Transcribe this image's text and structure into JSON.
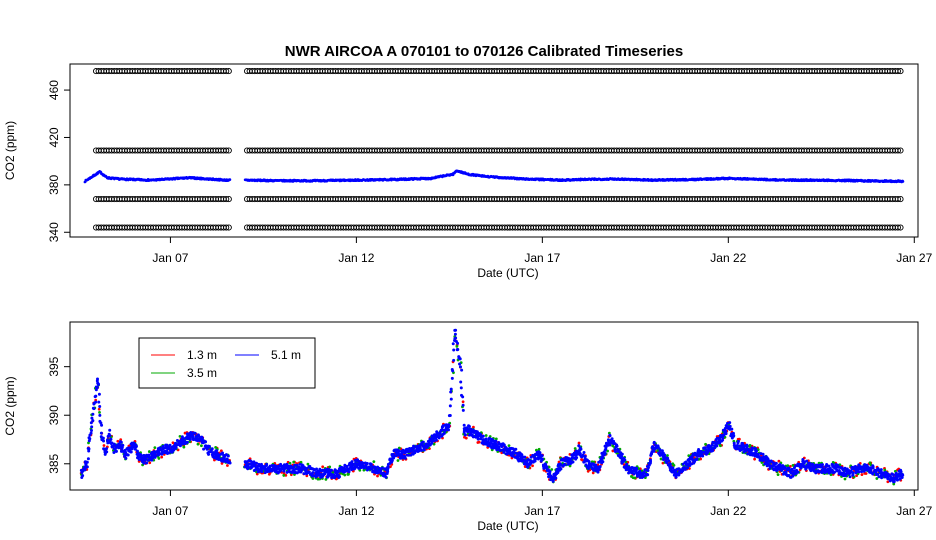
{
  "chart_data": [
    {
      "type": "scatter",
      "title": "NWR   AIRCOA  A    070101  to  070126   Calibrated Timeseries",
      "xlabel": "Date (UTC)",
      "ylabel": "CO2 (ppm)",
      "xlim": [
        4.3,
        27.1
      ],
      "ylim": [
        336,
        482
      ],
      "x_ticks": [
        7,
        12,
        17,
        22,
        27
      ],
      "x_tick_labels": [
        "Jan 07",
        "Jan 12",
        "Jan 17",
        "Jan 22",
        "Jan 27"
      ],
      "y_ticks": [
        340,
        380,
        420,
        460
      ],
      "y_tick_labels": [
        "340",
        "380",
        "420",
        "460"
      ],
      "gap": [
        8.6,
        9.0
      ],
      "calibration_levels": [
        {
          "value": 476,
          "start": 5.0,
          "end": 26.7
        },
        {
          "value": 409,
          "start": 5.0,
          "end": 26.7
        },
        {
          "value": 368,
          "start": 5.0,
          "end": 26.7
        },
        {
          "value": 344,
          "start": 5.0,
          "end": 26.7
        }
      ],
      "series": [
        {
          "color": "#0000ff",
          "x": [
            4.7,
            4.9,
            5.1,
            5.3,
            5.6,
            6.0,
            6.5,
            7.0,
            7.5,
            8.0,
            8.5,
            9.0,
            10.0,
            11.0,
            12.0,
            13.0,
            14.0,
            14.6,
            14.7,
            15.0,
            15.5,
            16.0,
            16.5,
            17.0,
            17.5,
            18.0,
            19.0,
            20.0,
            21.0,
            22.0,
            22.5,
            23.5,
            24.5,
            25.5,
            26.7
          ],
          "y": [
            383,
            387,
            391,
            386,
            385,
            384.5,
            384,
            385,
            386,
            385,
            384,
            384,
            383.5,
            383.5,
            384,
            384.5,
            385.5,
            389,
            392,
            389,
            387,
            386,
            385,
            384.5,
            384,
            384.5,
            385,
            384,
            384.5,
            385.5,
            385,
            384,
            384,
            383.5,
            383
          ]
        }
      ]
    },
    {
      "type": "line",
      "xlabel": "Date (UTC)",
      "ylabel": "CO2 (ppm)",
      "xlim": [
        4.3,
        27.1
      ],
      "ylim": [
        382.3,
        399.6
      ],
      "x_ticks": [
        7,
        12,
        17,
        22,
        27
      ],
      "x_tick_labels": [
        "Jan 07",
        "Jan 12",
        "Jan 17",
        "Jan 22",
        "Jan 27"
      ],
      "y_ticks": [
        385,
        390,
        395
      ],
      "y_tick_labels": [
        "385",
        "390",
        "395"
      ],
      "gap": [
        8.6,
        9.0
      ],
      "legend": {
        "placement": "top-left",
        "entries": [
          {
            "label": "1.3 m",
            "color": "#ff0000"
          },
          {
            "label": "5.1 m",
            "color": "#0000ff"
          },
          {
            "label": "3.5 m",
            "color": "#00aa00"
          }
        ]
      },
      "series": [
        {
          "name": "1.3 m",
          "color": "#ff0000",
          "x": [
            4.6,
            4.75,
            4.85,
            4.95,
            5.05,
            5.15,
            5.25,
            5.35,
            5.5,
            5.65,
            5.8,
            6.0,
            6.2,
            6.4,
            6.6,
            6.8,
            7.0,
            7.2,
            7.4,
            7.6,
            7.8,
            8.0,
            8.2,
            8.5,
            9.0,
            9.5,
            10.0,
            10.5,
            11.0,
            11.5,
            12.0,
            12.5,
            12.8,
            13.0,
            13.3,
            13.6,
            13.9,
            14.2,
            14.5,
            14.65,
            14.7,
            14.75,
            14.8,
            14.9,
            15.0,
            15.2,
            15.4,
            15.7,
            16.0,
            16.3,
            16.6,
            16.9,
            17.1,
            17.3,
            17.5,
            17.8,
            18.0,
            18.2,
            18.5,
            18.8,
            19.0,
            19.3,
            19.6,
            19.8,
            20.0,
            20.3,
            20.6,
            20.9,
            21.2,
            21.5,
            21.8,
            22.0,
            22.2,
            22.5,
            22.8,
            23.1,
            23.4,
            23.7,
            24.0,
            24.3,
            24.6,
            24.9,
            25.2,
            25.5,
            25.8,
            26.1,
            26.4,
            26.7
          ],
          "y": [
            384,
            385,
            388,
            391,
            393,
            388,
            386,
            388,
            386.5,
            387,
            386,
            387,
            385.5,
            385.5,
            386,
            386.5,
            386.5,
            387,
            387.5,
            388,
            387.5,
            386.5,
            386,
            385.5,
            385,
            384.5,
            384.5,
            384.5,
            384,
            384,
            385,
            384.5,
            384,
            386,
            386,
            386.5,
            387,
            388,
            389,
            398,
            397,
            396,
            395,
            388,
            388.5,
            388,
            387.5,
            387,
            386.5,
            386,
            385,
            386,
            384.5,
            383.5,
            385,
            385.5,
            386.5,
            385,
            384.5,
            387.5,
            386.5,
            384.5,
            384,
            384,
            387,
            385.5,
            384,
            385,
            386,
            386.5,
            387.5,
            389,
            387,
            386.5,
            386,
            385,
            384.5,
            384,
            385,
            384.5,
            384.5,
            384.5,
            384,
            384.5,
            384.5,
            384,
            383.5,
            384
          ]
        },
        {
          "name": "3.5 m",
          "color": "#00aa00",
          "x": [
            4.6,
            4.75,
            4.85,
            4.95,
            5.05,
            5.15,
            5.25,
            5.35,
            5.5,
            5.65,
            5.8,
            6.0,
            6.2,
            6.4,
            6.6,
            6.8,
            7.0,
            7.2,
            7.4,
            7.6,
            7.8,
            8.0,
            8.2,
            8.5,
            9.0,
            9.5,
            10.0,
            10.5,
            11.0,
            11.5,
            12.0,
            12.5,
            12.8,
            13.0,
            13.3,
            13.6,
            13.9,
            14.2,
            14.5,
            14.65,
            14.7,
            14.75,
            14.8,
            14.9,
            15.0,
            15.2,
            15.4,
            15.7,
            16.0,
            16.3,
            16.6,
            16.9,
            17.1,
            17.3,
            17.5,
            17.8,
            18.0,
            18.2,
            18.5,
            18.8,
            19.0,
            19.3,
            19.6,
            19.8,
            20.0,
            20.3,
            20.6,
            20.9,
            21.2,
            21.5,
            21.8,
            22.0,
            22.2,
            22.5,
            22.8,
            23.1,
            23.4,
            23.7,
            24.0,
            24.3,
            24.6,
            24.9,
            25.2,
            25.5,
            25.8,
            26.1,
            26.4,
            26.7
          ],
          "y": [
            384,
            385,
            388,
            391,
            393.5,
            388,
            386,
            388,
            386.5,
            387,
            386,
            387,
            385.5,
            385.5,
            386,
            386.5,
            386.5,
            387,
            387.5,
            388,
            387.5,
            386.5,
            386,
            385.5,
            385,
            384.5,
            384.5,
            384.5,
            384,
            384,
            385,
            384.5,
            384,
            386,
            386,
            386.5,
            387,
            388,
            389,
            398,
            397,
            396,
            395,
            388,
            388.5,
            388,
            387.5,
            387,
            386.5,
            386,
            385,
            386,
            384.5,
            383.5,
            385,
            385.5,
            386.5,
            385,
            384.5,
            387.5,
            386.5,
            384.5,
            384,
            384,
            387,
            385.5,
            384,
            385,
            386,
            386.5,
            387.5,
            389,
            387,
            386.5,
            386,
            385,
            384.5,
            384,
            385,
            384.5,
            384.5,
            384.5,
            384,
            384.5,
            384.5,
            384,
            383.5,
            384
          ]
        },
        {
          "name": "5.1 m",
          "color": "#0000ff",
          "x": [
            4.6,
            4.75,
            4.85,
            4.95,
            5.05,
            5.15,
            5.25,
            5.35,
            5.5,
            5.65,
            5.8,
            6.0,
            6.2,
            6.4,
            6.6,
            6.8,
            7.0,
            7.2,
            7.4,
            7.6,
            7.8,
            8.0,
            8.2,
            8.5,
            9.0,
            9.5,
            10.0,
            10.5,
            11.0,
            11.5,
            12.0,
            12.5,
            12.8,
            13.0,
            13.3,
            13.6,
            13.9,
            14.2,
            14.5,
            14.65,
            14.7,
            14.75,
            14.8,
            14.9,
            15.0,
            15.2,
            15.4,
            15.7,
            16.0,
            16.3,
            16.6,
            16.9,
            17.1,
            17.3,
            17.5,
            17.8,
            18.0,
            18.2,
            18.5,
            18.8,
            19.0,
            19.3,
            19.6,
            19.8,
            20.0,
            20.3,
            20.6,
            20.9,
            21.2,
            21.5,
            21.8,
            22.0,
            22.2,
            22.5,
            22.8,
            23.1,
            23.4,
            23.7,
            24.0,
            24.3,
            24.6,
            24.9,
            25.2,
            25.5,
            25.8,
            26.1,
            26.4,
            26.7
          ],
          "y": [
            384,
            385,
            388,
            391,
            394,
            388,
            386,
            388,
            386.5,
            387,
            386,
            387,
            385.5,
            385.5,
            386,
            386.5,
            386.5,
            387,
            387.5,
            388,
            387.5,
            386.5,
            386,
            385.5,
            385,
            384.5,
            384.5,
            384.5,
            384,
            384,
            385,
            384.5,
            384,
            386,
            386,
            386.5,
            387,
            388,
            389,
            399,
            397.5,
            396,
            395,
            388,
            388.5,
            388,
            387.5,
            387,
            386.5,
            386,
            385,
            386,
            384.5,
            383.5,
            385,
            385.5,
            386.5,
            385,
            384.5,
            387.5,
            386.5,
            384.5,
            384,
            384,
            387,
            385.5,
            384,
            385,
            386,
            386.5,
            387.5,
            389,
            387,
            386.5,
            386,
            385,
            384.5,
            384,
            385,
            384.5,
            384.5,
            384.5,
            384,
            384.5,
            384.5,
            384,
            383.5,
            384
          ]
        }
      ]
    }
  ]
}
